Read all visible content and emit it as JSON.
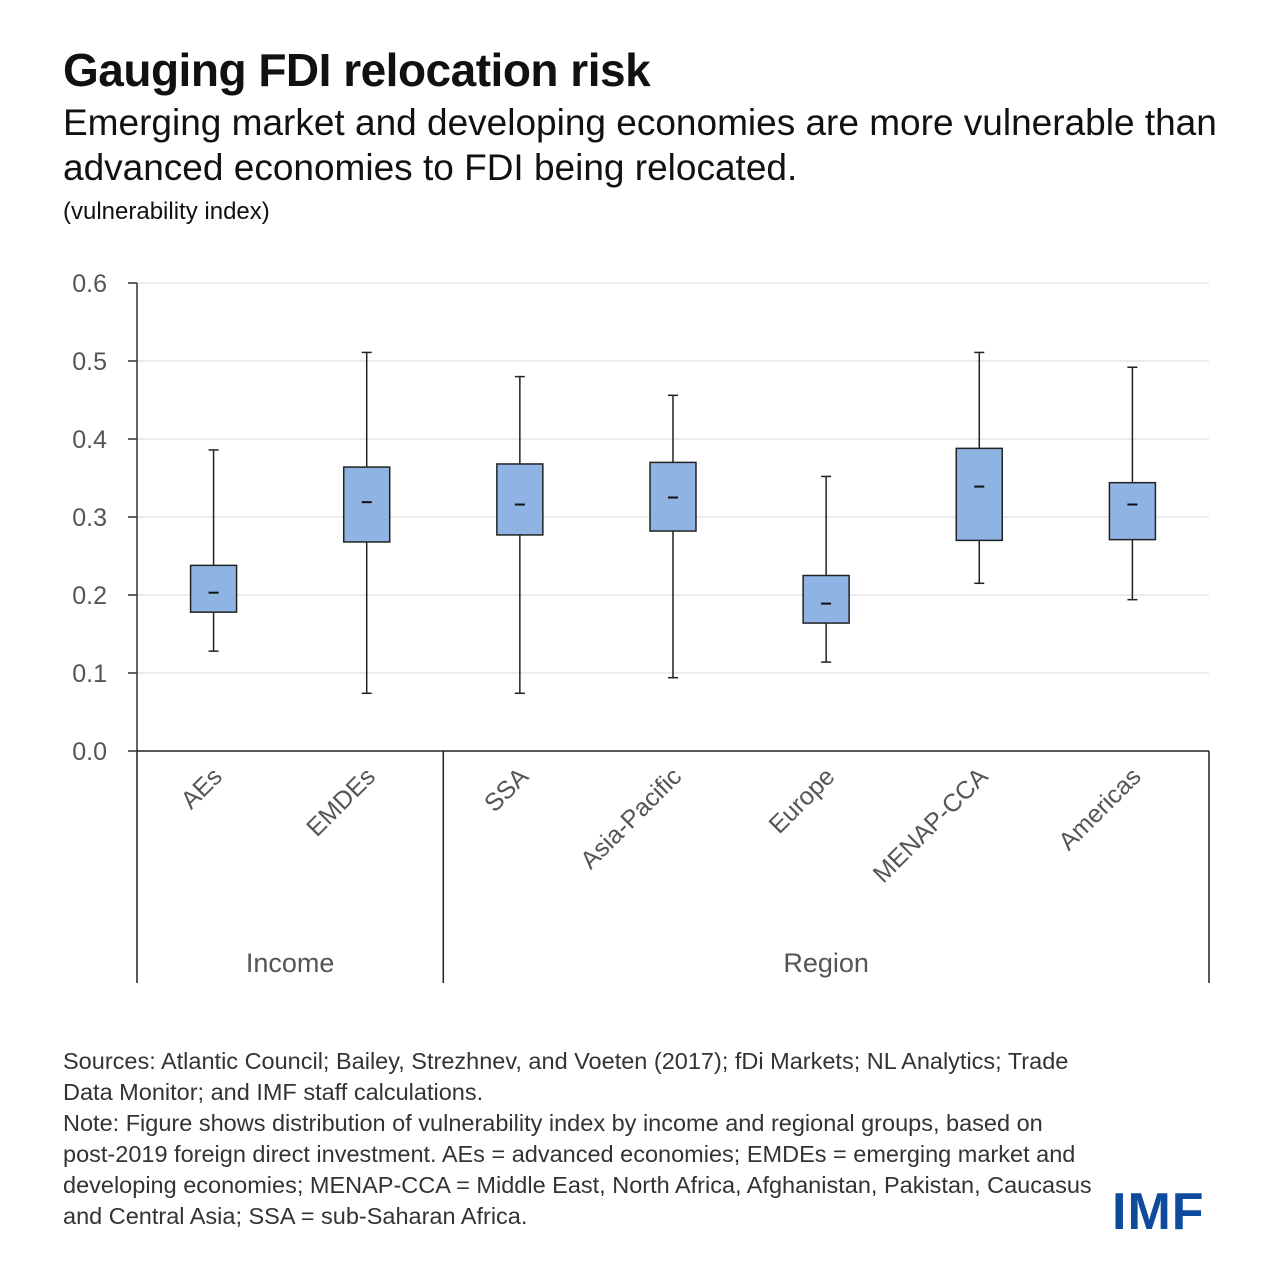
{
  "header": {
    "title": "Gauging FDI relocation risk",
    "subtitle": "Emerging market and developing economies are more vulnerable than advanced economies to FDI being relocated.",
    "unit": "(vulnerability index)"
  },
  "chart_data": {
    "type": "boxplot",
    "ylim": [
      0,
      0.6
    ],
    "yticks": [
      "0.0",
      "0.1",
      "0.2",
      "0.3",
      "0.4",
      "0.5",
      "0.6"
    ],
    "grid": true,
    "box_color": "#8fb4e3",
    "categories": [
      "AEs",
      "EMDEs",
      "SSA",
      "Asia-Pacific",
      "Europe",
      "MENAP-CCA",
      "Americas"
    ],
    "groups": [
      {
        "label": "Income",
        "count": 2
      },
      {
        "label": "Region",
        "count": 5
      }
    ],
    "boxes": [
      {
        "category": "AEs",
        "min": 0.128,
        "q1": 0.178,
        "median": 0.203,
        "q3": 0.238,
        "max": 0.386
      },
      {
        "category": "EMDEs",
        "min": 0.074,
        "q1": 0.268,
        "median": 0.319,
        "q3": 0.364,
        "max": 0.511
      },
      {
        "category": "SSA",
        "min": 0.074,
        "q1": 0.277,
        "median": 0.316,
        "q3": 0.368,
        "max": 0.48
      },
      {
        "category": "Asia-Pacific",
        "min": 0.094,
        "q1": 0.282,
        "median": 0.325,
        "q3": 0.37,
        "max": 0.456
      },
      {
        "category": "Europe",
        "min": 0.114,
        "q1": 0.164,
        "median": 0.189,
        "q3": 0.225,
        "max": 0.352
      },
      {
        "category": "MENAP-CCA",
        "min": 0.215,
        "q1": 0.27,
        "median": 0.339,
        "q3": 0.388,
        "max": 0.511
      },
      {
        "category": "Americas",
        "min": 0.194,
        "q1": 0.271,
        "median": 0.316,
        "q3": 0.344,
        "max": 0.492
      }
    ]
  },
  "footer": {
    "sources": "Sources: Atlantic Council; Bailey, Strezhnev, and Voeten (2017); fDi Markets; NL Analytics; Trade Data Monitor; and IMF staff calculations.",
    "note": "Note: Figure shows distribution of vulnerability index by income and regional groups, based on post-2019 foreign direct investment. AEs = advanced economies; EMDEs = emerging market and developing economies; MENAP-CCA = Middle East, North Africa, Afghanistan, Pakistan, Caucasus and Central Asia; SSA = sub-Saharan Africa.",
    "logo": "IMF"
  }
}
